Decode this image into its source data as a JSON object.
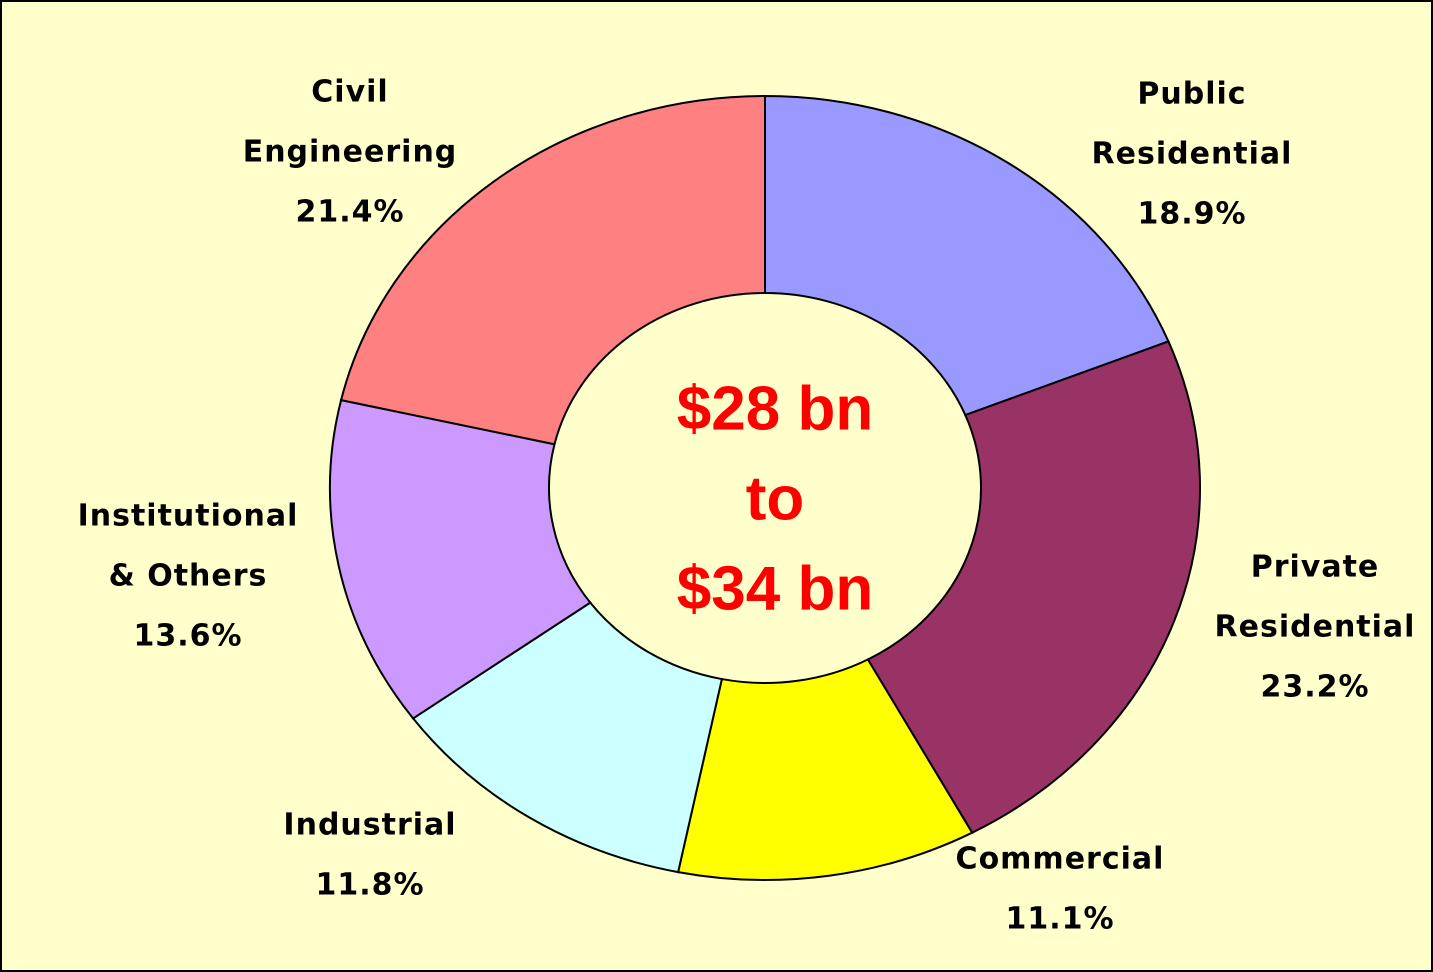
{
  "chart_data": {
    "type": "donut",
    "categories": [
      [
        "Public",
        "Residential"
      ],
      [
        "Private",
        "Residential"
      ],
      [
        "Commercial"
      ],
      [
        "Industrial"
      ],
      [
        "Institutional",
        "& Others"
      ],
      [
        "Civil",
        "Engineering"
      ]
    ],
    "values": [
      18.9,
      23.2,
      11.1,
      11.8,
      13.6,
      21.4
    ],
    "value_labels": [
      "18.9%",
      "23.2%",
      "11.1%",
      "11.8%",
      "13.6%",
      "21.4%"
    ],
    "colors": [
      "#9999ff",
      "#993366",
      "#ffff00",
      "#ccffff",
      "#cc99ff",
      "#ff8080"
    ],
    "center_label": [
      "$28 bn",
      "to",
      "$34 bn"
    ]
  }
}
